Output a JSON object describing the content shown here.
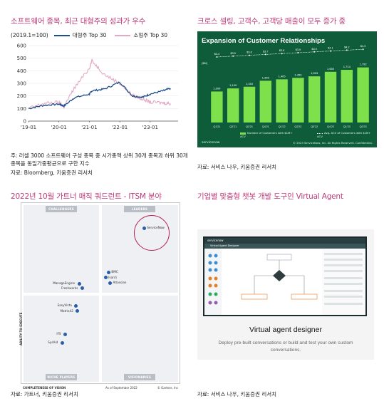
{
  "panel1": {
    "title": "소프트웨어 종목, 최근 대형주의 성과가 우수",
    "index_label": "(2019.1=100)",
    "note": "주: 러셀 3000 소프트웨어 구성 종목 중 시가총액 상위 30개 종목과 하위 30개 종목을 동일가중평균으로 구한 지수",
    "source": "자료: Bloomberg, 키움증권 리서치"
  },
  "panel2": {
    "title": "크로스 셀링, 고객수, 고객당 매출이 모두 증가 중",
    "source": "자료: 서비스 나우, 키움증권 리서치",
    "slide_title": "Expansion of Customer Relationships",
    "slide_unit": "($M)",
    "brand": "servicenow",
    "footer": "© 2023 ServiceNow, Inc. All Rights Reserved. Confidential.",
    "legend_bar": "Number of Customers with $1M+ ACV",
    "legend_line": "Avg. ACV of Customers with $1M+ ACV"
  },
  "panel3": {
    "title": "2022년 10월 가트너 매직 쿼드런트 - ITSM 분야",
    "source": "자료: 가트너, 키움증권 리서치",
    "quadrants": {
      "challengers": "CHALLENGERS",
      "leaders": "LEADERS",
      "niche": "NICHE PLAYERS",
      "visionaries": "VISIONARIES"
    },
    "axis_y": "ABILITY TO EXECUTE",
    "axis_x": "COMPLETENESS OF VISION",
    "as_of": "As of September 2022",
    "copyright": "© Gartner, Inc",
    "vendors": [
      {
        "name": "ServiceNow",
        "vision": 0.78,
        "execute": 0.87
      },
      {
        "name": "BMC",
        "vision": 0.55,
        "execute": 0.62
      },
      {
        "name": "Ivanti",
        "vision": 0.53,
        "execute": 0.59
      },
      {
        "name": "Atlassian",
        "vision": 0.56,
        "execute": 0.56
      },
      {
        "name": "ManageEngine",
        "vision": 0.36,
        "execute": 0.555
      },
      {
        "name": "Freshworks",
        "vision": 0.38,
        "execute": 0.53
      },
      {
        "name": "EasyVista",
        "vision": 0.34,
        "execute": 0.43
      },
      {
        "name": "Matrix42",
        "vision": 0.35,
        "execute": 0.4
      },
      {
        "name": "IFS",
        "vision": 0.27,
        "execute": 0.27
      },
      {
        "name": "SysAid",
        "vision": 0.25,
        "execute": 0.22
      }
    ]
  },
  "panel4": {
    "title": "기업별 맞춤형 챗봇 개발 도구인 Virtual Agent",
    "source": "자료: 서비스 나우, 키움증권 리서치",
    "app_brand": "servicenow",
    "app_sub": "Virtual Agent Designer",
    "heading": "Virtual agent designer",
    "description": "Deploy pre-built conversations or build and test your own custom conversations."
  },
  "colors": {
    "accent": "#c0397a",
    "large_cap": "#1f4e8c",
    "small_cap": "#e3a9c4",
    "slide_bg": "#0f5c3a",
    "bar": "#7ee04a"
  },
  "chart_data": [
    {
      "type": "line",
      "x": [
        "2019-01",
        "2019-07",
        "2020-01",
        "2020-03",
        "2020-07",
        "2021-01",
        "2021-02",
        "2021-07",
        "2022-01",
        "2022-06",
        "2022-10",
        "2023-01",
        "2023-06",
        "2023-09"
      ],
      "x_ticks": [
        "'19-01",
        "'20-01",
        "'21-01",
        "'22-01",
        "'23-01"
      ],
      "ylim": [
        0,
        600
      ],
      "y_ticks": [
        0,
        100,
        200,
        300,
        400,
        500,
        600
      ],
      "series": [
        {
          "name": "대형주 Top 30",
          "values": [
            100,
            125,
            135,
            120,
            185,
            215,
            240,
            255,
            310,
            200,
            190,
            215,
            240,
            260
          ]
        },
        {
          "name": "소형주 Top 30",
          "values": [
            100,
            140,
            150,
            115,
            260,
            420,
            480,
            370,
            300,
            205,
            175,
            150,
            145,
            140
          ]
        }
      ]
    },
    {
      "type": "bar",
      "categories": [
        "Q1'21",
        "Q2'21",
        "Q3'21",
        "Q4'21",
        "Q1'22",
        "Q2'22",
        "Q3'22",
        "Q4'22",
        "Q1'23",
        "Q2'23"
      ],
      "values": [
        1009,
        1109,
        1164,
        1359,
        1405,
        1453,
        1503,
        1650,
        1714,
        1792
      ],
      "value_labels": [
        "1,009",
        "1,109",
        "1,164",
        "1,359",
        "1,405",
        "1,453",
        "1,503",
        "1,650",
        "1,714",
        "1,792"
      ],
      "line_values": [
        3.4,
        3.5,
        3.6,
        3.7,
        3.8,
        3.9,
        4.0,
        4.1,
        4.2,
        4.3
      ],
      "line_labels": [
        "$3.4",
        "$3.5",
        "$3.6",
        "$3.7",
        "$3.8",
        "$3.9",
        "$4.0",
        "$4.1",
        "$4.2",
        "$4.3"
      ]
    }
  ]
}
